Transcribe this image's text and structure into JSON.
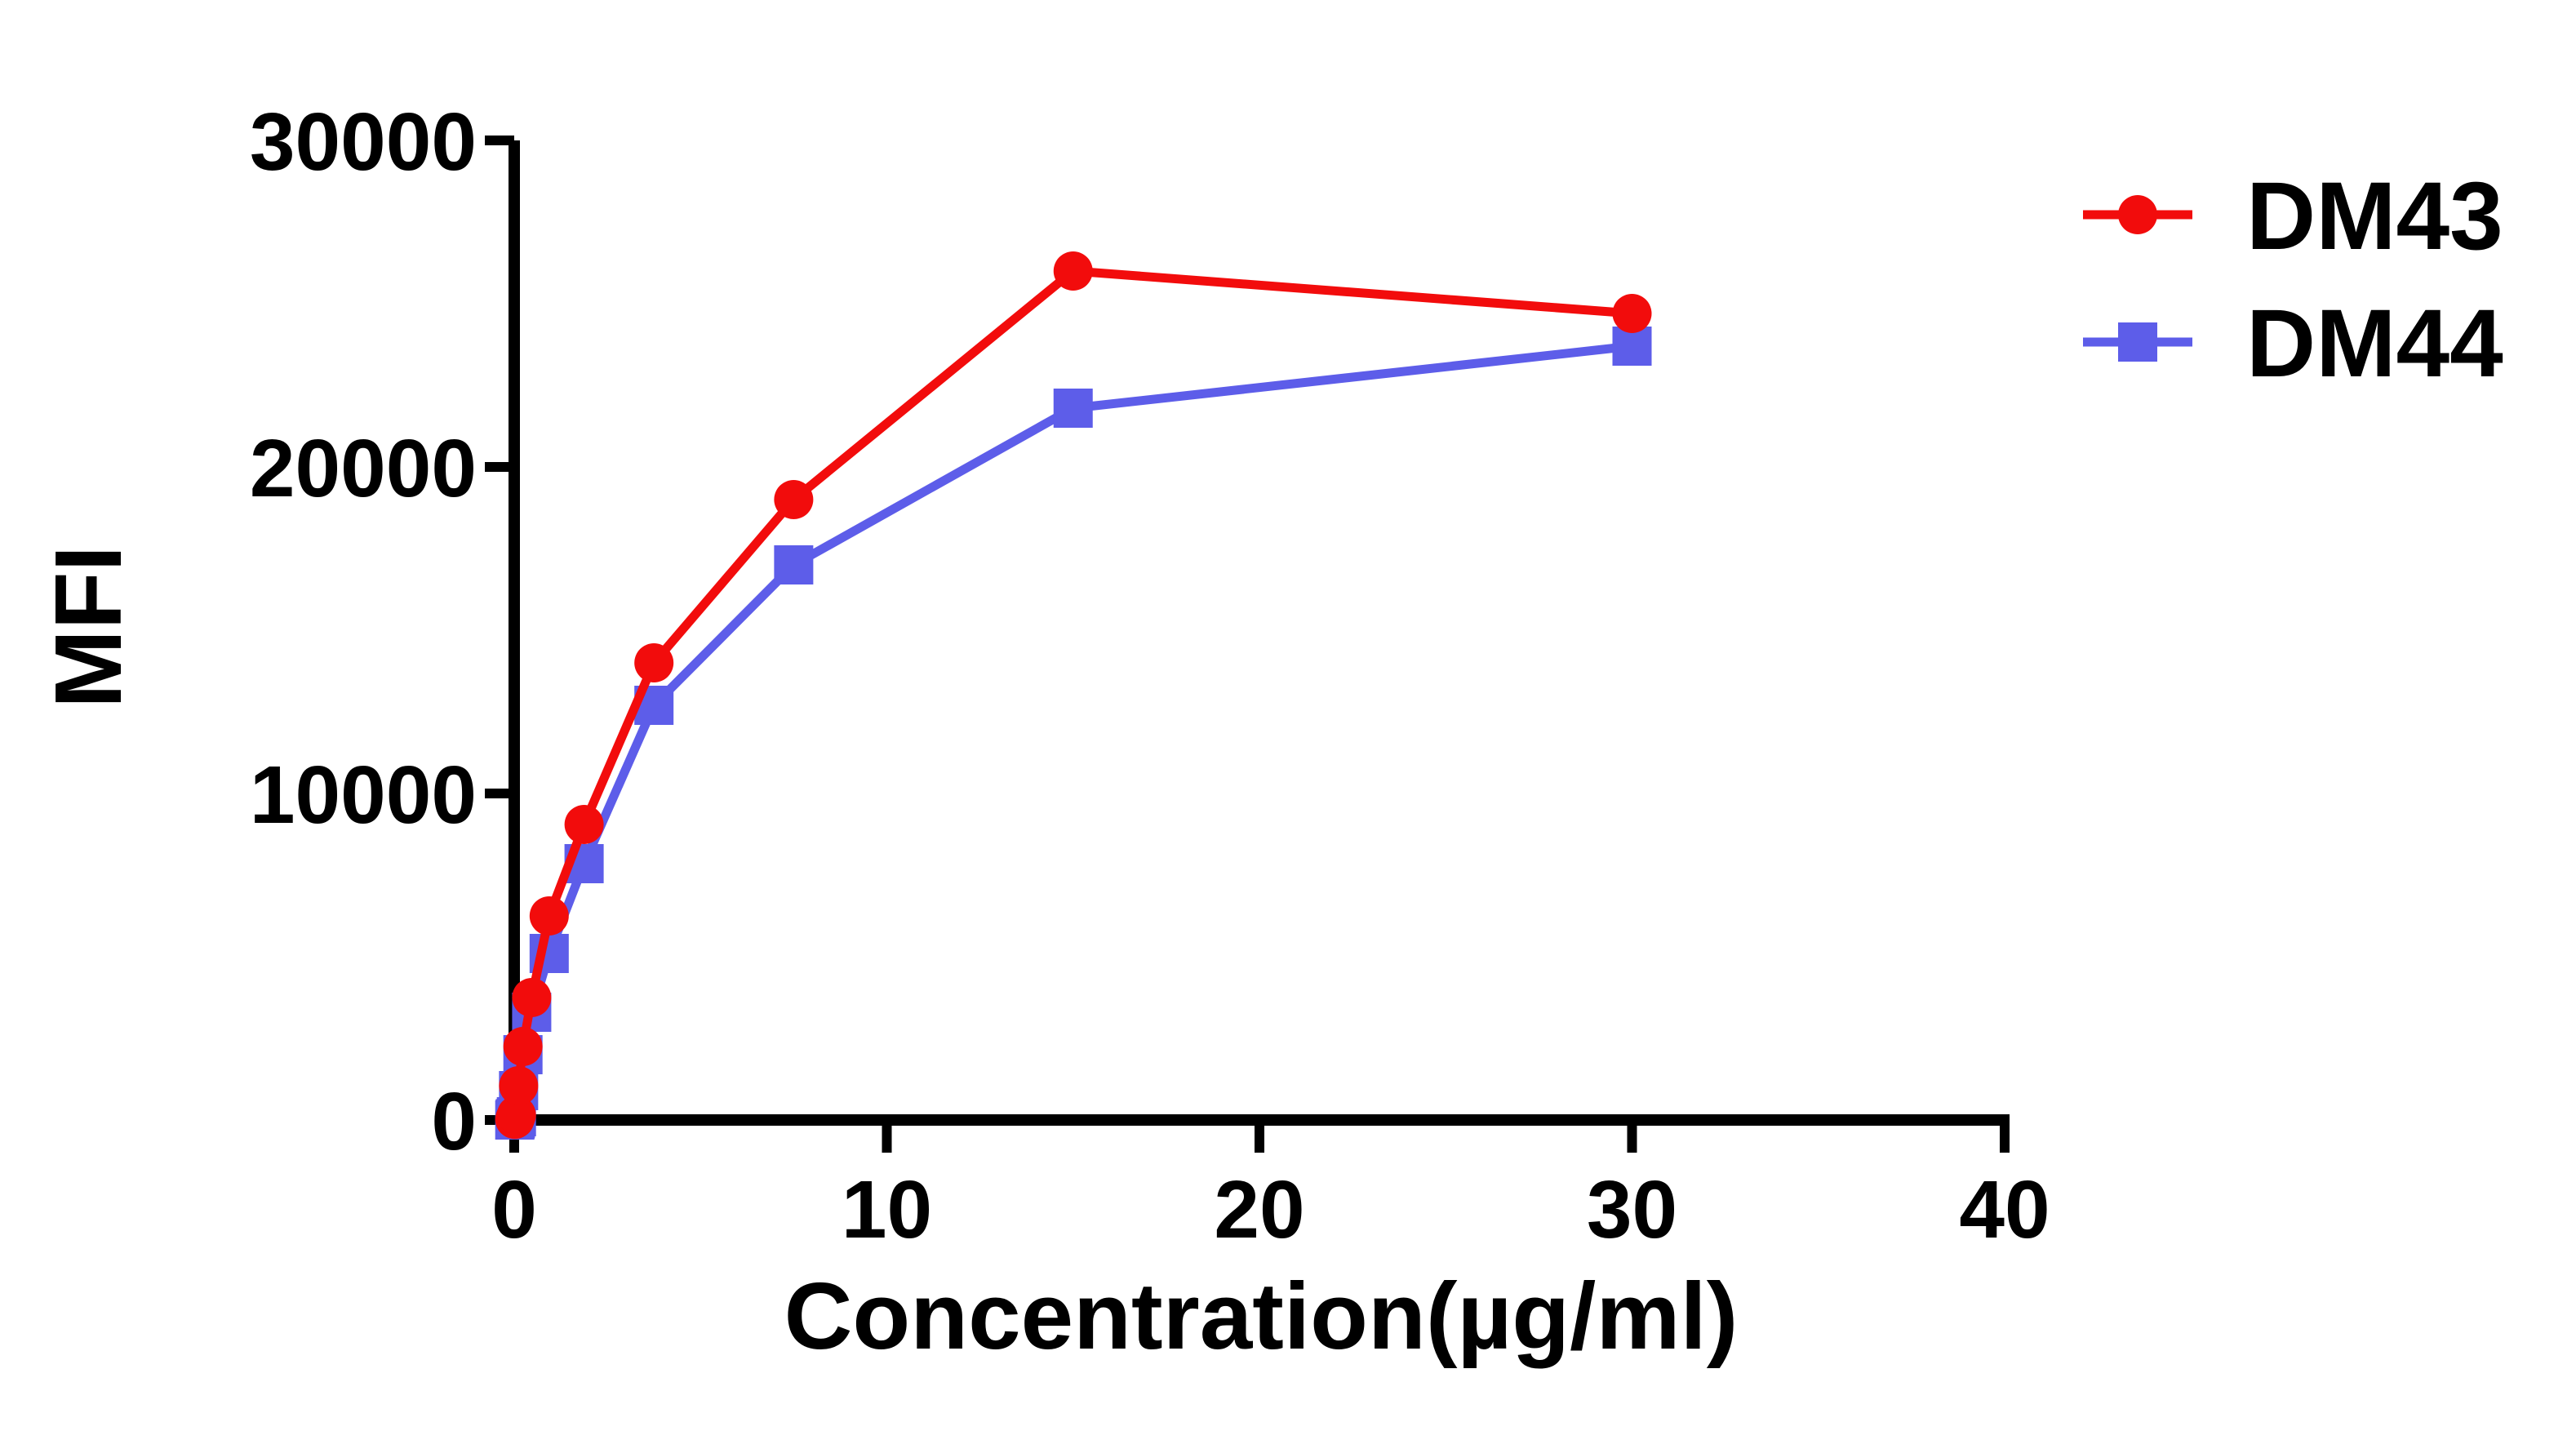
{
  "chart_data": {
    "type": "line",
    "title": "",
    "xlabel": "Concentration(µg/ml)",
    "ylabel": "MFI",
    "xlim": [
      0,
      40
    ],
    "ylim": [
      0,
      30000
    ],
    "x_ticks": [
      0,
      10,
      20,
      30,
      40
    ],
    "y_ticks": [
      0,
      10000,
      20000,
      30000
    ],
    "grid": false,
    "legend_position": "right-top",
    "x": [
      0.015,
      0.029,
      0.059,
      0.117,
      0.234,
      0.469,
      0.938,
      1.875,
      3.75,
      7.5,
      15,
      30
    ],
    "series": [
      {
        "name": "DM43",
        "color": "#f20c0c",
        "marker": "circle",
        "values": [
          20,
          60,
          150,
          1050,
          2250,
          3750,
          6250,
          9050,
          14000,
          19000,
          26000,
          24700
        ]
      },
      {
        "name": "DM44",
        "color": "#5d5de9",
        "marker": "square",
        "values": [
          0,
          40,
          100,
          900,
          2000,
          3300,
          5100,
          7850,
          12700,
          17000,
          21800,
          23700
        ]
      }
    ]
  },
  "legend": {
    "items": [
      {
        "label": "DM43"
      },
      {
        "label": "DM44"
      }
    ]
  },
  "colors": {
    "axis": "#000000",
    "text": "#000000",
    "background": "#ffffff"
  }
}
